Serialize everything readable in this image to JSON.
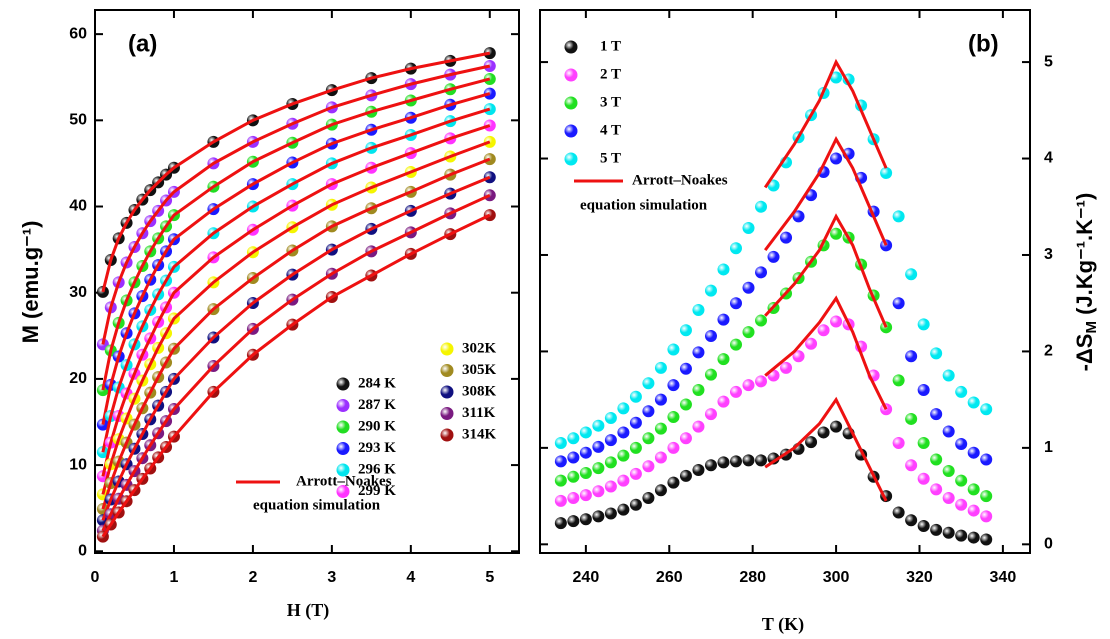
{
  "chart_data": [
    {
      "type": "scatter",
      "title": "(a)",
      "xlabel": "H (T)",
      "ylabel": "M (emu.g⁻¹)",
      "xlim": [
        0,
        5.37
      ],
      "ylim": [
        -0.2,
        62.8
      ],
      "xticks": [
        0,
        1,
        2,
        3,
        4,
        5
      ],
      "yticks": [
        0,
        10,
        20,
        30,
        40,
        50,
        60
      ],
      "fit_color": "#ee1111",
      "fit_label": [
        "Arrott–Noakes",
        "equation simulation"
      ],
      "x": [
        0.1,
        0.2,
        0.3,
        0.4,
        0.5,
        0.6,
        0.7,
        0.8,
        0.9,
        1,
        1.5,
        2,
        2.5,
        3,
        3.5,
        4,
        4.5,
        5
      ],
      "series": [
        {
          "name": "284 K",
          "color": "#111111",
          "values": [
            30.1,
            33.8,
            36.3,
            38.1,
            39.6,
            40.8,
            41.9,
            42.8,
            43.7,
            44.5,
            47.5,
            50,
            51.9,
            53.5,
            54.9,
            56,
            56.9,
            57.8
          ]
        },
        {
          "name": "287 K",
          "color": "#9b30ff",
          "values": [
            24.0,
            28.3,
            31.2,
            33.5,
            35.3,
            36.9,
            38.3,
            39.5,
            40.7,
            41.7,
            45,
            47.5,
            49.6,
            51.5,
            52.9,
            54.2,
            55.3,
            56.3
          ]
        },
        {
          "name": "290 K",
          "color": "#22dd22",
          "values": [
            18.7,
            23.3,
            26.5,
            29.1,
            31.2,
            33.1,
            34.8,
            36.3,
            37.7,
            39,
            42.3,
            45.2,
            47.4,
            49.5,
            51,
            52.3,
            53.6,
            54.8
          ]
        },
        {
          "name": "293 K",
          "color": "#1a1aff",
          "values": [
            14.7,
            19.3,
            22.6,
            25.3,
            27.6,
            29.6,
            31.5,
            33.2,
            34.8,
            36.2,
            39.7,
            42.6,
            45.1,
            47.3,
            48.9,
            50.3,
            51.8,
            53.1
          ]
        },
        {
          "name": "296 K",
          "color": "#00e5ee",
          "values": [
            11.5,
            15.7,
            19.0,
            21.6,
            24.0,
            26.1,
            28.0,
            29.8,
            31.4,
            33,
            36.9,
            40,
            42.6,
            45,
            46.8,
            48.3,
            49.9,
            51.3
          ]
        },
        {
          "name": "299 K",
          "color": "#ff33ff",
          "values": [
            8.7,
            12.6,
            15.7,
            18.3,
            20.6,
            22.8,
            24.7,
            26.6,
            28.3,
            30,
            34.1,
            37.3,
            40.1,
            42.6,
            44.5,
            46.2,
            47.9,
            49.4
          ]
        },
        {
          "name": "302K",
          "color": "#f5f500",
          "values": [
            6.6,
            10.1,
            13.0,
            15.4,
            17.7,
            19.8,
            21.7,
            23.6,
            25.3,
            27,
            31.2,
            34.7,
            37.6,
            40.2,
            42.2,
            44,
            45.8,
            47.5
          ]
        },
        {
          "name": "305K",
          "color": "#a08a20",
          "values": [
            4.9,
            7.9,
            10.4,
            12.6,
            14.7,
            16.6,
            18.4,
            20.2,
            21.9,
            23.5,
            28.1,
            31.7,
            34.9,
            37.7,
            39.8,
            41.7,
            43.7,
            45.5
          ]
        },
        {
          "name": "308K",
          "color": "#101080",
          "values": [
            3.6,
            6.0,
            8.1,
            10.1,
            11.9,
            13.6,
            15.3,
            16.9,
            18.5,
            20,
            24.8,
            28.8,
            32.1,
            35,
            37.4,
            39.5,
            41.5,
            43.4
          ]
        },
        {
          "name": "311K",
          "color": "#7a1a80",
          "values": [
            2.4,
            4.3,
            6.1,
            7.7,
            9.3,
            10.8,
            12.3,
            13.7,
            15.1,
            16.5,
            21.5,
            25.8,
            29.2,
            32.2,
            34.8,
            37,
            39.2,
            41.3
          ]
        },
        {
          "name": "314K",
          "color": "#a01010",
          "values": [
            1.7,
            3.1,
            4.5,
            5.8,
            7.1,
            8.4,
            9.6,
            10.9,
            12.1,
            13.3,
            18.5,
            22.8,
            26.3,
            29.5,
            32,
            34.5,
            36.8,
            39
          ]
        }
      ]
    },
    {
      "type": "scatter",
      "title": "(b)",
      "xlabel": "T (K)",
      "ylabel": [
        "-ΔS",
        "M",
        " (J.Kg⁻¹.K⁻¹)"
      ],
      "xlim": [
        229,
        346.5
      ],
      "ylim": [
        -0.09,
        5.54
      ],
      "xticks": [
        240,
        260,
        280,
        300,
        320,
        340
      ],
      "yticks": [
        0,
        1,
        2,
        3,
        4,
        5
      ],
      "fit_color": "#ee1111",
      "fit_label": [
        "Arrott–Noakes",
        "equation simulation"
      ],
      "x": [
        234,
        237,
        240,
        243,
        246,
        249,
        252,
        255,
        258,
        261,
        264,
        267,
        270,
        273,
        276,
        279,
        282,
        285,
        288,
        291,
        294,
        297,
        300,
        303,
        306,
        309,
        312,
        315,
        318,
        321,
        324,
        327,
        330,
        333,
        336
      ],
      "fit_x": [
        283,
        290,
        296,
        300,
        304,
        308,
        312
      ],
      "series": [
        {
          "name": "1 T",
          "color": "#111111",
          "values": [
            0.22,
            0.24,
            0.26,
            0.29,
            0.32,
            0.36,
            0.41,
            0.48,
            0.56,
            0.64,
            0.71,
            0.77,
            0.82,
            0.85,
            0.86,
            0.87,
            0.87,
            0.89,
            0.93,
            0.99,
            1.06,
            1.16,
            1.22,
            1.15,
            0.93,
            0.7,
            0.5,
            0.33,
            0.25,
            0.19,
            0.15,
            0.12,
            0.09,
            0.07,
            0.05
          ],
          "fit_values": [
            0.8,
            1.0,
            1.25,
            1.5,
            1.15,
            0.8,
            0.45
          ]
        },
        {
          "name": "2 T",
          "color": "#ff40ff",
          "values": [
            0.45,
            0.48,
            0.51,
            0.55,
            0.6,
            0.66,
            0.73,
            0.81,
            0.9,
            1.0,
            1.1,
            1.22,
            1.35,
            1.48,
            1.58,
            1.65,
            1.69,
            1.75,
            1.83,
            1.95,
            2.08,
            2.22,
            2.31,
            2.28,
            2.05,
            1.75,
            1.4,
            1.05,
            0.82,
            0.68,
            0.57,
            0.48,
            0.41,
            0.35,
            0.29
          ],
          "fit_values": [
            1.75,
            2.0,
            2.3,
            2.55,
            2.2,
            1.75,
            1.4
          ]
        },
        {
          "name": "3 T",
          "color": "#20e020",
          "values": [
            0.66,
            0.7,
            0.74,
            0.79,
            0.85,
            0.92,
            1.0,
            1.1,
            1.2,
            1.32,
            1.45,
            1.6,
            1.76,
            1.92,
            2.07,
            2.2,
            2.32,
            2.45,
            2.6,
            2.76,
            2.93,
            3.1,
            3.22,
            3.18,
            2.9,
            2.58,
            2.25,
            1.7,
            1.3,
            1.05,
            0.88,
            0.76,
            0.66,
            0.57,
            0.5
          ],
          "fit_values": [
            2.37,
            2.7,
            3.05,
            3.4,
            3.1,
            2.65,
            2.25
          ]
        },
        {
          "name": "4 T",
          "color": "#1a1aff",
          "values": [
            0.86,
            0.9,
            0.95,
            1.01,
            1.08,
            1.16,
            1.26,
            1.38,
            1.5,
            1.65,
            1.82,
            1.99,
            2.16,
            2.33,
            2.5,
            2.66,
            2.82,
            2.98,
            3.18,
            3.4,
            3.62,
            3.86,
            4.0,
            4.05,
            3.8,
            3.45,
            3.1,
            2.5,
            1.95,
            1.6,
            1.35,
            1.17,
            1.04,
            0.95,
            0.88
          ],
          "fit_values": [
            3.05,
            3.45,
            3.85,
            4.2,
            3.9,
            3.5,
            3.1
          ]
        },
        {
          "name": "5 T",
          "color": "#00e8f0",
          "values": [
            1.05,
            1.1,
            1.16,
            1.23,
            1.31,
            1.41,
            1.53,
            1.67,
            1.83,
            2.02,
            2.22,
            2.43,
            2.63,
            2.85,
            3.07,
            3.28,
            3.5,
            3.72,
            3.96,
            4.22,
            4.45,
            4.68,
            4.84,
            4.82,
            4.55,
            4.2,
            3.85,
            3.4,
            2.8,
            2.28,
            1.98,
            1.75,
            1.58,
            1.47,
            1.4
          ],
          "fit_values": [
            3.7,
            4.15,
            4.6,
            5.0,
            4.7,
            4.3,
            3.9
          ]
        }
      ]
    }
  ]
}
